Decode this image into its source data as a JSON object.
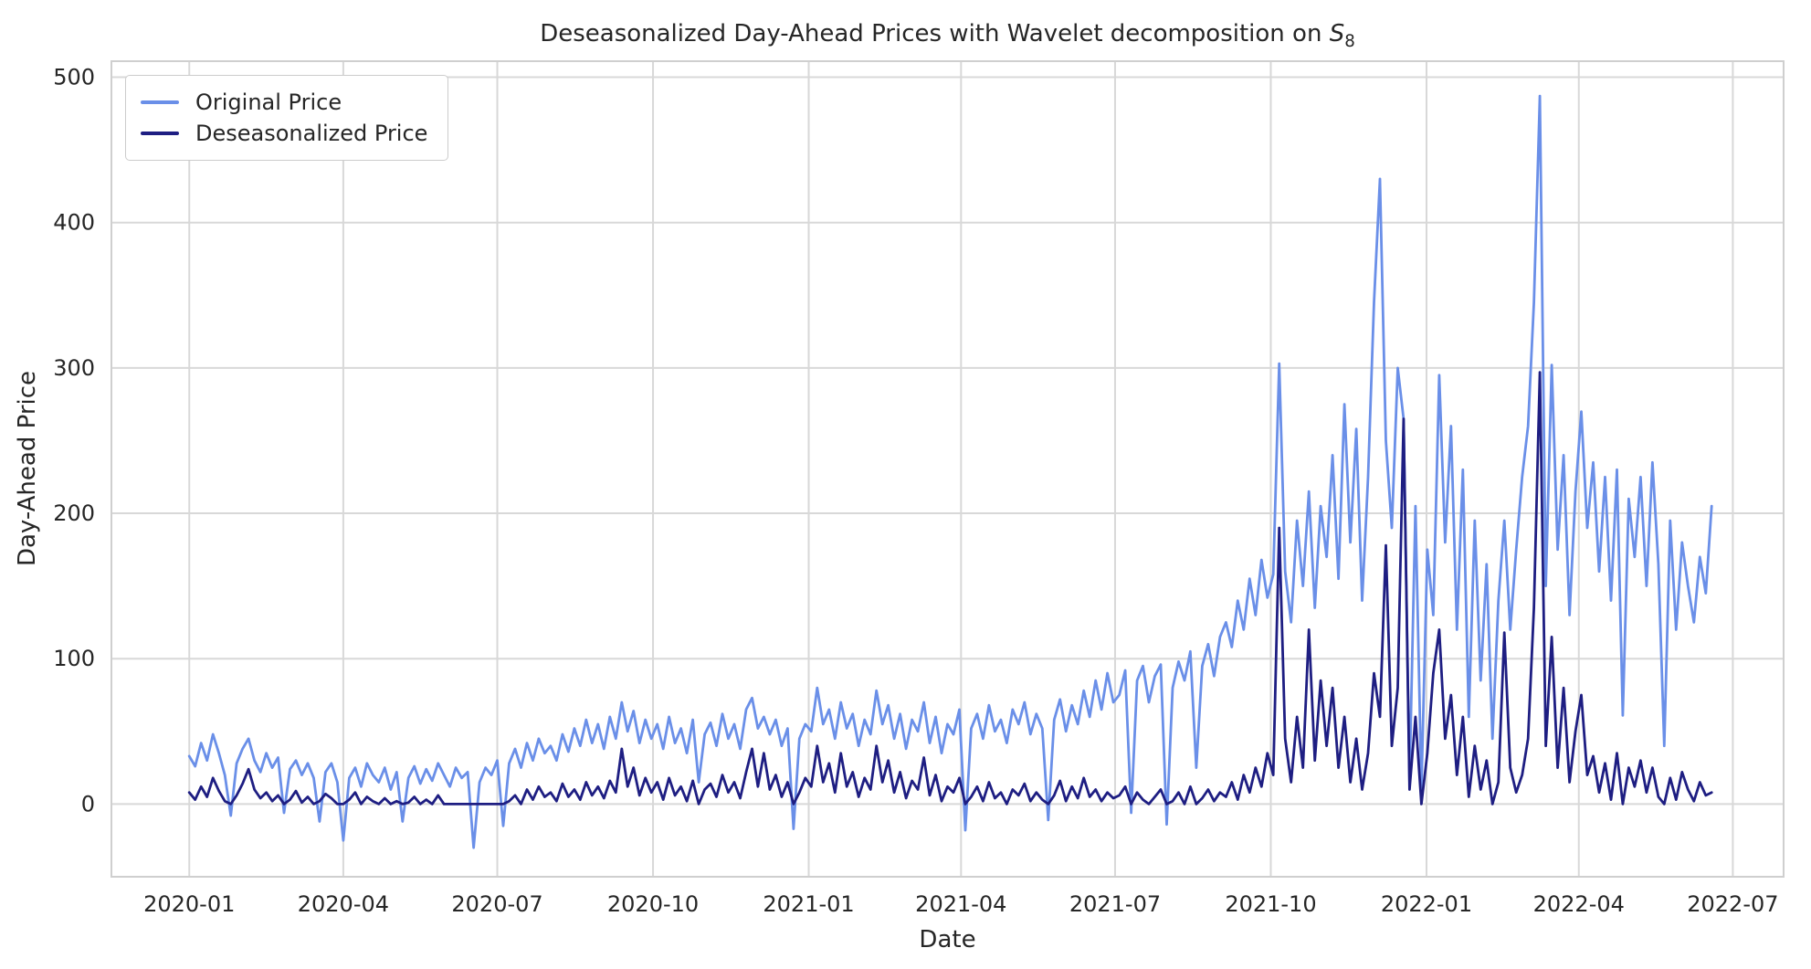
{
  "title": {
    "main": "Deseasonalized Day-Ahead Prices with Wavelet decomposition on ",
    "math_var": "S",
    "math_sub": "8"
  },
  "axes": {
    "xlabel": "Date",
    "ylabel": "Day-Ahead Price"
  },
  "legend": {
    "items": [
      {
        "label": "Original Price",
        "color": "#6a8fe8"
      },
      {
        "label": "Deseasonalized Price",
        "color": "#1e1e82"
      }
    ]
  },
  "colors": {
    "original_line": "#6a8fe8",
    "deseasonalized_line": "#1e1e82",
    "grid": "#d8d8d8",
    "spine": "#cfcfcf",
    "text": "#262626",
    "background": "#ffffff"
  },
  "chart_data": {
    "type": "line",
    "title": "Deseasonalized Day-Ahead Prices with Wavelet decomposition on S_8",
    "xlabel": "Date",
    "ylabel": "Day-Ahead Price",
    "grid": true,
    "legend_position": "upper left",
    "x_start": "2020-01-01",
    "x_step_days": 3.5,
    "x_domain_days": [
      -46,
      942
    ],
    "y_domain": [
      -50,
      511
    ],
    "x_ticks_days": [
      0,
      91,
      182,
      274,
      366,
      456,
      547,
      639,
      731,
      821,
      912
    ],
    "x_tick_labels": [
      "2020-01",
      "2020-04",
      "2020-07",
      "2020-10",
      "2021-01",
      "2021-04",
      "2021-07",
      "2021-10",
      "2022-01",
      "2022-04",
      "2022-07"
    ],
    "y_ticks": [
      0,
      100,
      200,
      300,
      400,
      500
    ],
    "y_tick_labels": [
      "0",
      "100",
      "200",
      "300",
      "400",
      "500"
    ],
    "series": [
      {
        "name": "Original Price",
        "color": "#6a8fe8",
        "values": [
          33,
          26,
          42,
          30,
          48,
          35,
          20,
          -8,
          28,
          38,
          45,
          30,
          22,
          35,
          25,
          32,
          -6,
          24,
          30,
          20,
          28,
          18,
          -12,
          22,
          28,
          15,
          -25,
          18,
          25,
          12,
          28,
          20,
          15,
          25,
          10,
          22,
          -12,
          18,
          26,
          14,
          24,
          16,
          28,
          20,
          12,
          25,
          18,
          22,
          -30,
          15,
          25,
          20,
          30,
          -15,
          28,
          38,
          25,
          42,
          30,
          45,
          35,
          40,
          30,
          48,
          36,
          52,
          40,
          58,
          42,
          55,
          38,
          60,
          45,
          70,
          50,
          64,
          42,
          58,
          45,
          55,
          38,
          60,
          42,
          52,
          35,
          58,
          15,
          48,
          56,
          40,
          62,
          45,
          55,
          38,
          65,
          73,
          52,
          60,
          48,
          58,
          40,
          52,
          -17,
          45,
          55,
          50,
          80,
          55,
          65,
          45,
          70,
          52,
          62,
          40,
          58,
          48,
          78,
          55,
          68,
          45,
          62,
          38,
          58,
          50,
          70,
          42,
          60,
          35,
          55,
          48,
          65,
          -18,
          52,
          62,
          45,
          68,
          50,
          58,
          42,
          65,
          55,
          70,
          48,
          62,
          52,
          -11,
          58,
          72,
          50,
          68,
          55,
          78,
          60,
          85,
          65,
          90,
          70,
          75,
          92,
          -6,
          85,
          95,
          70,
          88,
          96,
          -14,
          80,
          98,
          85,
          105,
          25,
          95,
          110,
          88,
          115,
          125,
          108,
          140,
          120,
          155,
          130,
          168,
          142,
          158,
          303,
          160,
          125,
          195,
          150,
          215,
          135,
          205,
          170,
          240,
          155,
          275,
          180,
          258,
          140,
          225,
          345,
          430,
          250,
          190,
          300,
          265,
          15,
          205,
          10,
          175,
          130,
          295,
          180,
          260,
          120,
          230,
          60,
          195,
          85,
          165,
          45,
          140,
          195,
          120,
          175,
          225,
          260,
          345,
          487,
          150,
          302,
          175,
          240,
          130,
          215,
          270,
          190,
          235,
          160,
          225,
          140,
          230,
          61,
          210,
          170,
          225,
          150,
          235,
          165,
          40,
          195,
          120,
          180,
          150,
          125,
          170,
          145,
          205
        ]
      },
      {
        "name": "Deseasonalized Price",
        "color": "#1e1e82",
        "values": [
          8,
          3,
          12,
          5,
          18,
          9,
          2,
          0,
          6,
          14,
          24,
          10,
          4,
          8,
          2,
          6,
          0,
          3,
          9,
          1,
          5,
          0,
          2,
          7,
          4,
          0,
          0,
          3,
          8,
          0,
          5,
          2,
          0,
          4,
          0,
          2,
          0,
          1,
          5,
          0,
          3,
          0,
          6,
          0,
          0,
          0,
          0,
          0,
          0,
          0,
          0,
          0,
          0,
          0,
          2,
          6,
          0,
          10,
          3,
          12,
          5,
          8,
          2,
          14,
          5,
          10,
          3,
          15,
          6,
          12,
          4,
          16,
          8,
          38,
          12,
          25,
          6,
          18,
          8,
          15,
          3,
          18,
          6,
          12,
          2,
          16,
          0,
          10,
          14,
          5,
          20,
          8,
          15,
          4,
          22,
          38,
          12,
          35,
          10,
          20,
          5,
          15,
          0,
          8,
          18,
          12,
          40,
          15,
          28,
          8,
          35,
          12,
          22,
          5,
          18,
          10,
          40,
          15,
          30,
          8,
          22,
          4,
          16,
          10,
          32,
          6,
          20,
          2,
          12,
          8,
          18,
          0,
          5,
          12,
          2,
          15,
          4,
          8,
          0,
          10,
          6,
          14,
          2,
          8,
          3,
          0,
          6,
          16,
          2,
          12,
          4,
          18,
          5,
          10,
          2,
          8,
          4,
          6,
          12,
          0,
          8,
          3,
          0,
          5,
          10,
          0,
          2,
          8,
          0,
          12,
          0,
          4,
          10,
          2,
          8,
          5,
          15,
          3,
          20,
          8,
          25,
          12,
          35,
          20,
          190,
          45,
          15,
          60,
          25,
          120,
          30,
          85,
          40,
          80,
          25,
          60,
          15,
          45,
          10,
          35,
          90,
          60,
          178,
          40,
          80,
          265,
          10,
          60,
          0,
          35,
          90,
          120,
          45,
          75,
          20,
          60,
          5,
          40,
          10,
          30,
          0,
          15,
          118,
          25,
          8,
          20,
          45,
          135,
          297,
          40,
          115,
          25,
          80,
          15,
          50,
          75,
          20,
          33,
          8,
          28,
          3,
          35,
          0,
          25,
          12,
          30,
          8,
          25,
          5,
          0,
          18,
          3,
          22,
          10,
          2,
          15,
          6,
          8
        ]
      }
    ]
  }
}
